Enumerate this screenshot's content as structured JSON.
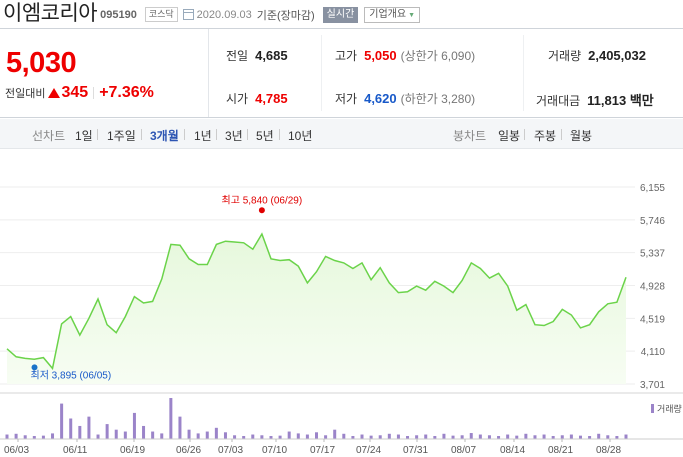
{
  "header": {
    "stock_name": "이엠코리아",
    "stock_code": "095190",
    "market": "코스닥",
    "date": "2020.09.03",
    "date_suffix": "기준(장마감)",
    "realtime_button": "실시간",
    "overview_button": "기업개요"
  },
  "price": {
    "current": "5,030",
    "change_label": "전일대비",
    "change_value": "345",
    "change_percent": "+7.36%",
    "direction": "up"
  },
  "stats": {
    "prev_close": {
      "label": "전일",
      "value": "4,685"
    },
    "open": {
      "label": "시가",
      "value": "4,785"
    },
    "high": {
      "label": "고가",
      "value": "5,050",
      "extra": "(상한가 6,090)"
    },
    "low": {
      "label": "저가",
      "value": "4,620",
      "extra": "(하한가 3,280)"
    },
    "volume": {
      "label": "거래량",
      "value": "2,405,032"
    },
    "amount": {
      "label": "거래대금",
      "value": "11,813 백만"
    }
  },
  "period_bar": {
    "line_label": "선차트",
    "line_periods": [
      "1일",
      "1주일",
      "3개월",
      "1년",
      "3년",
      "5년",
      "10년"
    ],
    "selected": "3개월",
    "candle_label": "봉차트",
    "candle_periods": [
      "일봉",
      "주봉",
      "월봉"
    ]
  },
  "colors": {
    "up": "#e00000",
    "down": "#1859c9",
    "line": "#6bd34a",
    "area": "#e6f8dc",
    "volume": "#9b84c9"
  },
  "chart_data": {
    "type": "area",
    "ticks_y": [
      "6,155",
      "5,746",
      "5,337",
      "4,928",
      "4,519",
      "4,110",
      "3,701"
    ],
    "ylim": [
      3701,
      6155
    ],
    "x_ticks": [
      "06/03",
      "06/11",
      "06/19",
      "06/26",
      "07/03",
      "07/10",
      "07/17",
      "07/24",
      "07/31",
      "08/07",
      "08/14",
      "08/21",
      "08/28"
    ],
    "high_label": "최고 5,840 (06/29)",
    "low_label": "최저 3,895 (06/05)",
    "high_point": {
      "x": "06/29",
      "y": 5840
    },
    "low_point": {
      "x": "06/05",
      "y": 3895
    },
    "volume_legend": "거래량",
    "series": [
      {
        "values": [
          4140,
          4040,
          4020,
          4010,
          4030,
          3895,
          4450,
          4540,
          4310,
          4520,
          4760,
          4440,
          4340,
          4540,
          4790,
          4710,
          4730,
          5010,
          5440,
          5430,
          5260,
          5190,
          5190,
          5440,
          5480,
          5470,
          5460,
          5380,
          5570,
          5260,
          5240,
          5250,
          5170,
          4960,
          5100,
          5290,
          5240,
          5210,
          5140,
          5210,
          5000,
          5150,
          4960,
          4840,
          4850,
          4920,
          4870,
          4980,
          4920,
          4840,
          4990,
          5210,
          5140,
          5020,
          5080,
          4920,
          4620,
          4690,
          4440,
          4430,
          4480,
          4630,
          4560,
          4400,
          4440,
          4600,
          4700,
          4720,
          5030
        ]
      }
    ],
    "volume": [
      12,
      14,
      10,
      8,
      9,
      15,
      95,
      55,
      35,
      60,
      12,
      40,
      25,
      20,
      70,
      35,
      20,
      15,
      110,
      60,
      25,
      15,
      20,
      30,
      18,
      10,
      8,
      12,
      10,
      8,
      9,
      20,
      15,
      12,
      18,
      10,
      25,
      14,
      8,
      12,
      9,
      10,
      14,
      12,
      8,
      10,
      12,
      8,
      14,
      9,
      10,
      16,
      12,
      10,
      8,
      12,
      9,
      14,
      10,
      12,
      8,
      10,
      12,
      9,
      8,
      14,
      10,
      8,
      12
    ]
  }
}
